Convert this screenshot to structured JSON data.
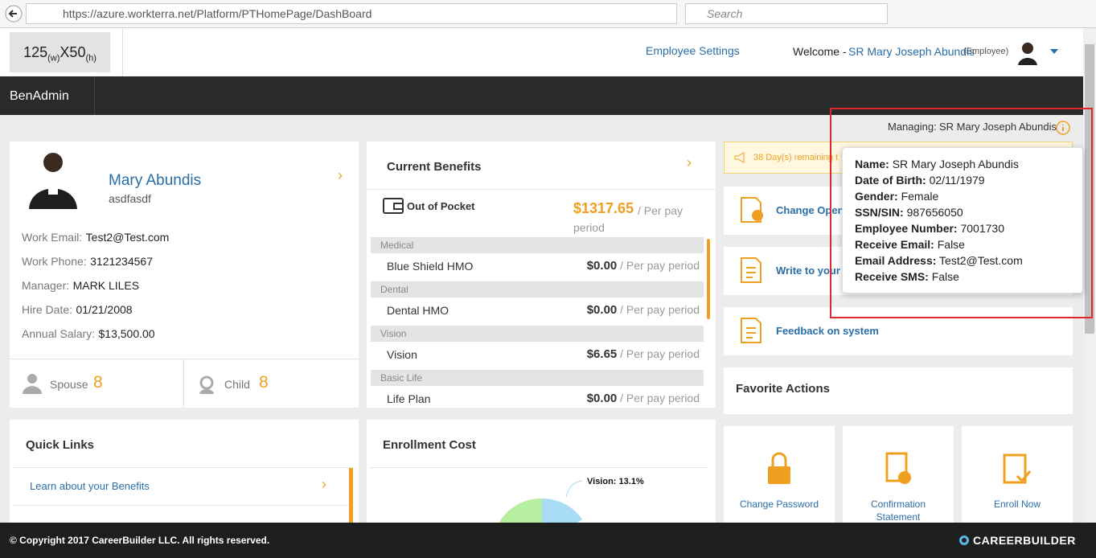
{
  "browser": {
    "url": "https://azure.workterra.net/Platform/PTHomePage/DashBoard",
    "search_placeholder": "Search"
  },
  "header": {
    "logo": {
      "width": "125",
      "w_unit": "(w)",
      "height": "X50",
      "h_unit": "(h)"
    },
    "employee_settings": "Employee Settings",
    "welcome": "Welcome -",
    "user_name": "SR Mary Joseph Abundis",
    "user_role": "(Employee)"
  },
  "nav": {
    "menu": "BenAdmin"
  },
  "managing": {
    "label": "Managing:",
    "name": "SR Mary Joseph Abundis"
  },
  "tooltip": {
    "fields": [
      {
        "label": "Name:",
        "value": "SR Mary Joseph Abundis"
      },
      {
        "label": "Date of Birth:",
        "value": "02/11/1979"
      },
      {
        "label": "Gender:",
        "value": "Female"
      },
      {
        "label": "SSN/SIN:",
        "value": "987656050"
      },
      {
        "label": "Employee Number:",
        "value": "7001730"
      },
      {
        "label": "Receive Email:",
        "value": "False"
      },
      {
        "label": "Email Address:",
        "value": "Test2@Test.com"
      },
      {
        "label": "Receive SMS:",
        "value": "False"
      }
    ]
  },
  "profile": {
    "name": "Mary Abundis",
    "subtitle": "asdfasdf",
    "fields": [
      {
        "label": "Work Email:",
        "value": "Test2@Test.com"
      },
      {
        "label": "Work Phone:",
        "value": "3121234567"
      },
      {
        "label": "Manager:",
        "value": "MARK LILES"
      },
      {
        "label": "Hire Date:",
        "value": "01/21/2008"
      },
      {
        "label": "Annual Salary:",
        "value": "$13,500.00"
      }
    ],
    "dependents": [
      {
        "label": "Spouse",
        "count": "8"
      },
      {
        "label": "Child",
        "count": "8"
      }
    ]
  },
  "current_benefits": {
    "title": "Current Benefits",
    "out_of_pocket": "Out of Pocket",
    "out_of_pocket_amount": "$1317.65",
    "per_pay_period": "/ Per pay period",
    "groups": [
      {
        "group": "Medical",
        "plan": "Blue Shield HMO",
        "amount": "$0.00"
      },
      {
        "group": "Dental",
        "plan": "Dental HMO",
        "amount": "$0.00"
      },
      {
        "group": "Vision",
        "plan": "Vision",
        "amount": "$6.65"
      },
      {
        "group": "Basic Life",
        "plan": "Life Plan",
        "amount": "$0.00"
      }
    ]
  },
  "notice": "38 Day(s) remaining t",
  "actions": [
    "Change Open",
    "Write to your",
    "Feedback on system"
  ],
  "favorite_actions": {
    "title": "Favorite Actions",
    "items": [
      "Change Password",
      "Confirmation Statement",
      "Enroll Now"
    ]
  },
  "quick_links": {
    "title": "Quick Links",
    "links": [
      "Learn about your Benefits"
    ]
  },
  "enrollment_cost": {
    "title": "Enrollment Cost",
    "slice_label": "Vision: 13.1%"
  },
  "footer": {
    "copyright": "© Copyright 2017 CareerBuilder LLC. All rights reserved.",
    "brand": "CAREERBUILDER"
  }
}
